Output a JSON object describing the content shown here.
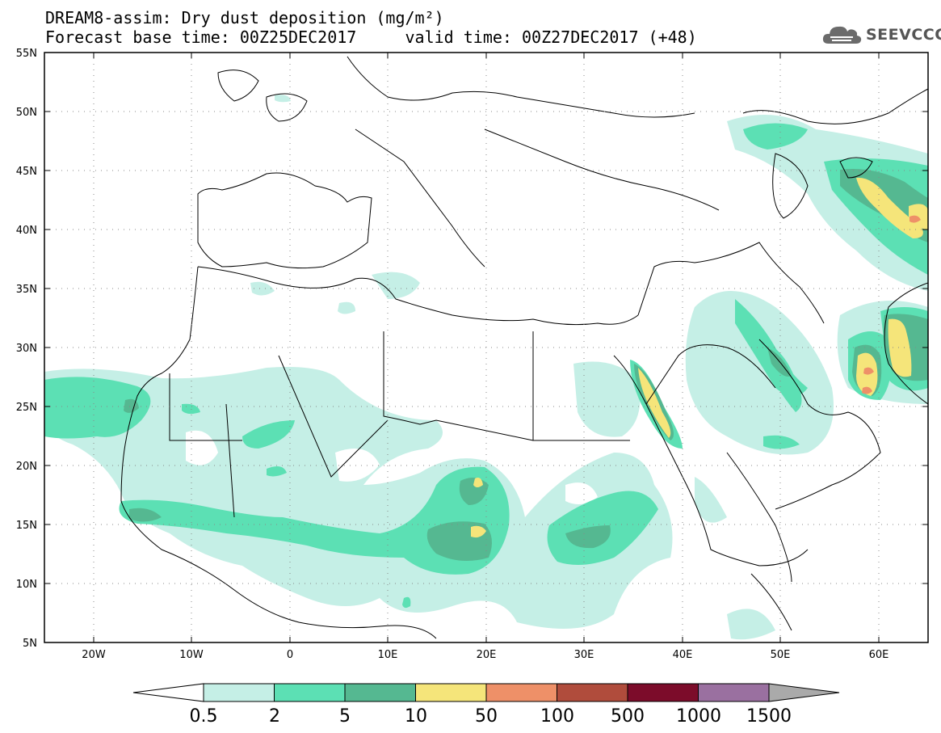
{
  "header": {
    "title_line1": "DREAM8-assim: Dry dust deposition (mg/m²)",
    "title_line2": "Forecast base time: 00Z25DEC2017     valid time: 00Z27DEC2017 (+48)"
  },
  "logo": {
    "text": "SEEVCCC",
    "icon": "cloud-icon"
  },
  "map": {
    "lat_labels": [
      "55N",
      "50N",
      "45N",
      "40N",
      "35N",
      "30N",
      "25N",
      "20N",
      "15N",
      "10N",
      "5N"
    ],
    "lon_labels": [
      "20W",
      "10W",
      "0",
      "10E",
      "20E",
      "30E",
      "40E",
      "50E",
      "60E"
    ]
  },
  "legend": {
    "labels": [
      "0.5",
      "2",
      "5",
      "10",
      "50",
      "100",
      "500",
      "1000",
      "1500"
    ],
    "colors": [
      "#c5efe6",
      "#5ce0b4",
      "#55b891",
      "#f5e57a",
      "#ee9068",
      "#b04c3c",
      "#7c0c2a",
      "#9a70a0",
      "#aaaaaa"
    ]
  }
}
